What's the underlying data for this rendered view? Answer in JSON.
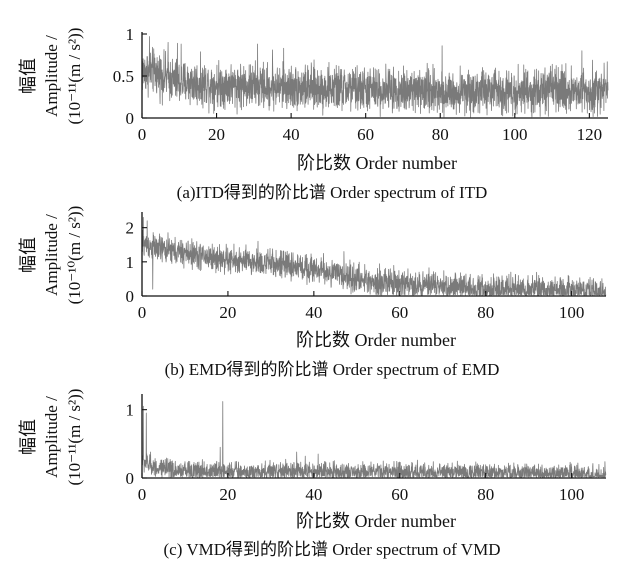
{
  "figure": {
    "background": "#ffffff",
    "line_color": "#7a7a7a",
    "axis_color": "#111111"
  },
  "chart_data": [
    {
      "type": "line",
      "caption": "(a)ITD得到的阶比谱 Order spectrum of ITD",
      "xlabel": "阶比数 Order number",
      "ylabel_cn": "幅值",
      "ylabel_en": "Amplitude /",
      "ylabel_unit": "(10⁻¹¹(m / s²))",
      "xlim": [
        0,
        125
      ],
      "ylim": [
        0,
        1
      ],
      "xticks": [
        0,
        20,
        40,
        60,
        80,
        100,
        120
      ],
      "yticks": [
        0,
        0.5,
        1
      ],
      "ytick_labels": [
        "0",
        "0.5",
        "1"
      ],
      "grid": false,
      "legend": "none",
      "keyframes": [
        [
          0,
          0.55
        ],
        [
          3,
          0.55
        ],
        [
          10,
          0.42
        ],
        [
          20,
          0.4
        ],
        [
          35,
          0.37
        ],
        [
          50,
          0.35
        ],
        [
          70,
          0.33
        ],
        [
          90,
          0.32
        ],
        [
          110,
          0.33
        ],
        [
          125,
          0.33
        ]
      ],
      "noise": 0.13,
      "sample_step": 0.05,
      "spikes": [
        [
          2,
          0.97
        ],
        [
          7,
          0.9
        ],
        [
          9.5,
          0.89
        ],
        [
          10.5,
          0.88
        ],
        [
          31,
          0.88
        ],
        [
          35,
          0.81
        ],
        [
          38,
          0.83
        ],
        [
          80.5,
          0.86
        ],
        [
          118,
          0.8
        ]
      ]
    },
    {
      "type": "line",
      "caption": "(b) EMD得到的阶比谱 Order spectrum of EMD",
      "xlabel": "阶比数 Order number",
      "ylabel_cn": "幅值",
      "ylabel_en": "Amplitude /",
      "ylabel_unit": "(10⁻¹⁰(m / s²))",
      "xlim": [
        0,
        108
      ],
      "ylim": [
        0,
        2.4
      ],
      "xticks": [
        0,
        20,
        40,
        60,
        80,
        100
      ],
      "yticks": [
        0,
        1,
        2
      ],
      "ytick_labels": [
        "0",
        "1",
        "2"
      ],
      "grid": false,
      "legend": "none",
      "keyframes": [
        [
          0,
          1.55
        ],
        [
          2,
          1.45
        ],
        [
          5,
          1.35
        ],
        [
          10,
          1.25
        ],
        [
          15,
          1.15
        ],
        [
          20,
          1.05
        ],
        [
          30,
          0.95
        ],
        [
          40,
          0.8
        ],
        [
          45,
          0.65
        ],
        [
          50,
          0.5
        ],
        [
          60,
          0.35
        ],
        [
          70,
          0.28
        ],
        [
          80,
          0.22
        ],
        [
          90,
          0.18
        ],
        [
          100,
          0.15
        ],
        [
          108,
          0.12
        ]
      ],
      "noise": 0.2,
      "sample_step": 0.05,
      "spikes": [
        [
          0.3,
          2.3
        ],
        [
          1.2,
          2.2
        ],
        [
          2.5,
          0.2
        ],
        [
          27,
          1.6
        ],
        [
          47,
          1.3
        ]
      ]
    },
    {
      "type": "line",
      "caption": "(c) VMD得到的阶比谱 Order spectrum of VMD",
      "xlabel": "阶比数 Order number",
      "ylabel_cn": "幅值",
      "ylabel_en": "Amplitude /",
      "ylabel_unit": "(10⁻¹¹(m / s²))",
      "xlim": [
        0,
        108
      ],
      "ylim": [
        0,
        1.2
      ],
      "xticks": [
        0,
        20,
        40,
        60,
        80,
        100
      ],
      "yticks": [
        0,
        1
      ],
      "ytick_labels": [
        "0",
        "1"
      ],
      "grid": false,
      "legend": "none",
      "keyframes": [
        [
          0,
          0.25
        ],
        [
          2,
          0.18
        ],
        [
          5,
          0.12
        ],
        [
          10,
          0.1
        ],
        [
          20,
          0.1
        ],
        [
          30,
          0.09
        ],
        [
          40,
          0.1
        ],
        [
          50,
          0.08
        ],
        [
          70,
          0.08
        ],
        [
          90,
          0.07
        ],
        [
          108,
          0.05
        ]
      ],
      "noise": 0.07,
      "sample_step": 0.05,
      "spikes": [
        [
          0.3,
          1.05
        ],
        [
          1,
          0.95
        ],
        [
          2,
          0.38
        ],
        [
          18.8,
          1.12
        ],
        [
          18.2,
          0.45
        ],
        [
          36,
          0.38
        ],
        [
          38,
          0.32
        ],
        [
          41,
          0.35
        ]
      ]
    }
  ]
}
